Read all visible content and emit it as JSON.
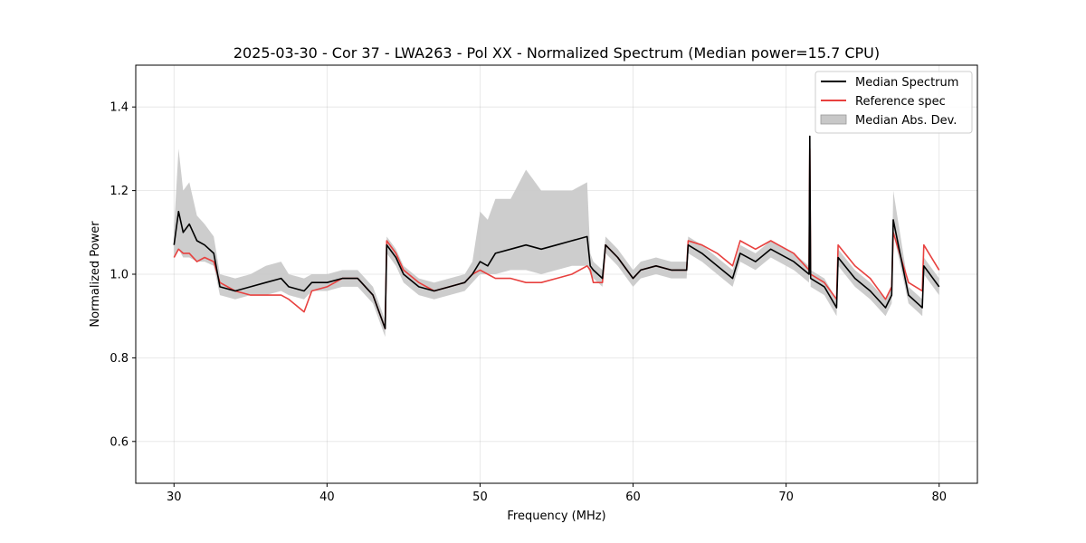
{
  "chart_data": {
    "type": "line",
    "title": "2025-03-30 - Cor 37 - LWA263 - Pol XX - Normalized Spectrum (Median power=15.7 CPU)",
    "xlabel": "Frequency (MHz)",
    "ylabel": "Normalized Power",
    "xlim": [
      27.5,
      82.5
    ],
    "ylim": [
      0.5,
      1.5
    ],
    "xticks": [
      30,
      40,
      50,
      60,
      70,
      80
    ],
    "yticks": [
      0.6,
      0.8,
      1.0,
      1.2,
      1.4
    ],
    "xtick_labels": [
      "30",
      "40",
      "50",
      "60",
      "70",
      "80"
    ],
    "ytick_labels": [
      "0.6",
      "0.8",
      "1.0",
      "1.2",
      "1.4"
    ],
    "grid": true,
    "legend_position": "top-right",
    "legend": [
      "Median Spectrum",
      "Reference spec",
      "Median Abs. Dev."
    ],
    "colors": {
      "median": "#000000",
      "reference": "#e8413f",
      "mad": "#c8c8c8"
    },
    "series": [
      {
        "name": "Median Spectrum",
        "x": [
          30.0,
          30.3,
          30.6,
          31.0,
          31.5,
          32.0,
          32.6,
          33.0,
          34.0,
          35.0,
          36.0,
          37.0,
          37.5,
          38.5,
          39.0,
          40.0,
          41.0,
          42.0,
          43.0,
          43.8,
          43.9,
          44.5,
          45.0,
          46.0,
          47.0,
          48.0,
          49.0,
          49.5,
          50.0,
          50.5,
          51.0,
          52.0,
          53.0,
          54.0,
          55.0,
          56.0,
          57.0,
          57.2,
          57.4,
          58.0,
          58.2,
          59.0,
          60.0,
          60.5,
          61.5,
          62.5,
          63.5,
          63.6,
          64.5,
          65.5,
          66.5,
          67.0,
          68.0,
          69.0,
          69.5,
          70.5,
          71.5,
          71.55,
          71.6,
          72.5,
          73.3,
          73.4,
          74.5,
          75.5,
          76.5,
          76.9,
          77.0,
          78.0,
          78.9,
          79.0,
          80.0
        ],
        "values": [
          1.07,
          1.15,
          1.1,
          1.12,
          1.08,
          1.07,
          1.05,
          0.97,
          0.96,
          0.97,
          0.98,
          0.99,
          0.97,
          0.96,
          0.98,
          0.98,
          0.99,
          0.99,
          0.95,
          0.87,
          1.07,
          1.04,
          1.0,
          0.97,
          0.96,
          0.97,
          0.98,
          1.0,
          1.03,
          1.02,
          1.05,
          1.06,
          1.07,
          1.06,
          1.07,
          1.08,
          1.09,
          1.02,
          1.01,
          0.99,
          1.07,
          1.04,
          0.99,
          1.01,
          1.02,
          1.01,
          1.01,
          1.07,
          1.05,
          1.02,
          0.99,
          1.05,
          1.03,
          1.06,
          1.05,
          1.03,
          1.0,
          1.33,
          0.99,
          0.97,
          0.92,
          1.04,
          0.99,
          0.96,
          0.92,
          0.95,
          1.13,
          0.95,
          0.92,
          1.02,
          0.97
        ]
      },
      {
        "name": "Reference spec",
        "x": [
          30.0,
          30.3,
          30.6,
          31.0,
          31.5,
          32.0,
          32.6,
          33.0,
          34.0,
          35.0,
          36.0,
          37.0,
          37.5,
          38.5,
          39.0,
          40.0,
          41.0,
          42.0,
          43.0,
          43.8,
          43.9,
          44.5,
          45.0,
          46.0,
          47.0,
          48.0,
          49.0,
          49.5,
          50.0,
          50.5,
          51.0,
          52.0,
          53.0,
          54.0,
          55.0,
          56.0,
          57.0,
          57.2,
          57.4,
          58.0,
          58.2,
          59.0,
          60.0,
          60.5,
          61.5,
          62.5,
          63.5,
          63.6,
          64.5,
          65.5,
          66.5,
          67.0,
          68.0,
          69.0,
          69.5,
          70.5,
          71.5,
          71.55,
          71.6,
          72.5,
          73.3,
          73.4,
          74.5,
          75.5,
          76.5,
          76.9,
          77.0,
          78.0,
          78.9,
          79.0,
          80.0
        ],
        "values": [
          1.04,
          1.06,
          1.05,
          1.05,
          1.03,
          1.04,
          1.03,
          0.98,
          0.96,
          0.95,
          0.95,
          0.95,
          0.94,
          0.91,
          0.96,
          0.97,
          0.99,
          0.99,
          0.95,
          0.87,
          1.08,
          1.05,
          1.01,
          0.98,
          0.96,
          0.97,
          0.98,
          1.0,
          1.01,
          1.0,
          0.99,
          0.99,
          0.98,
          0.98,
          0.99,
          1.0,
          1.02,
          1.01,
          0.98,
          0.98,
          1.07,
          1.04,
          0.99,
          1.01,
          1.02,
          1.01,
          1.01,
          1.08,
          1.07,
          1.05,
          1.02,
          1.08,
          1.06,
          1.08,
          1.07,
          1.05,
          1.01,
          1.3,
          1.0,
          0.98,
          0.94,
          1.07,
          1.02,
          0.99,
          0.94,
          0.97,
          1.1,
          0.98,
          0.96,
          1.07,
          1.01
        ]
      },
      {
        "name": "Median Abs. Dev.",
        "x": [
          30.0,
          30.3,
          30.6,
          31.0,
          31.5,
          32.0,
          32.6,
          33.0,
          34.0,
          35.0,
          36.0,
          37.0,
          37.5,
          38.5,
          39.0,
          40.0,
          41.0,
          42.0,
          43.0,
          43.8,
          43.9,
          44.5,
          45.0,
          46.0,
          47.0,
          48.0,
          49.0,
          49.5,
          50.0,
          50.5,
          51.0,
          52.0,
          53.0,
          54.0,
          55.0,
          56.0,
          57.0,
          57.2,
          57.4,
          58.0,
          58.2,
          59.0,
          60.0,
          60.5,
          61.5,
          62.5,
          63.5,
          63.6,
          64.5,
          65.5,
          66.5,
          67.0,
          68.0,
          69.0,
          69.5,
          70.5,
          71.5,
          71.55,
          71.6,
          72.5,
          73.3,
          73.4,
          74.5,
          75.5,
          76.5,
          76.9,
          77.0,
          78.0,
          78.9,
          79.0,
          80.0
        ],
        "upper": [
          1.11,
          1.3,
          1.2,
          1.22,
          1.14,
          1.12,
          1.09,
          1.0,
          0.99,
          1.0,
          1.02,
          1.03,
          1.0,
          0.99,
          1.0,
          1.0,
          1.01,
          1.01,
          0.97,
          0.89,
          1.09,
          1.06,
          1.02,
          0.99,
          0.98,
          0.99,
          1.0,
          1.03,
          1.15,
          1.13,
          1.18,
          1.18,
          1.25,
          1.2,
          1.2,
          1.2,
          1.22,
          1.05,
          1.03,
          1.01,
          1.09,
          1.06,
          1.01,
          1.03,
          1.04,
          1.03,
          1.03,
          1.09,
          1.07,
          1.04,
          1.01,
          1.07,
          1.05,
          1.08,
          1.07,
          1.05,
          1.02,
          1.34,
          1.01,
          0.99,
          0.94,
          1.06,
          1.01,
          0.98,
          0.94,
          0.97,
          1.2,
          0.97,
          0.94,
          1.04,
          0.99
        ],
        "lower": [
          1.04,
          1.06,
          1.04,
          1.04,
          1.03,
          1.03,
          1.02,
          0.95,
          0.94,
          0.95,
          0.95,
          0.96,
          0.95,
          0.94,
          0.96,
          0.96,
          0.97,
          0.97,
          0.93,
          0.85,
          1.05,
          1.02,
          0.98,
          0.95,
          0.94,
          0.95,
          0.96,
          0.98,
          1.0,
          1.0,
          1.0,
          1.01,
          1.01,
          1.0,
          1.01,
          1.02,
          1.02,
          1.0,
          0.99,
          0.97,
          1.05,
          1.02,
          0.97,
          0.99,
          1.0,
          0.99,
          0.99,
          1.05,
          1.03,
          1.0,
          0.97,
          1.03,
          1.01,
          1.04,
          1.03,
          1.01,
          0.98,
          1.31,
          0.97,
          0.95,
          0.9,
          1.02,
          0.97,
          0.94,
          0.9,
          0.93,
          1.1,
          0.93,
          0.9,
          1.0,
          0.95
        ]
      }
    ]
  }
}
